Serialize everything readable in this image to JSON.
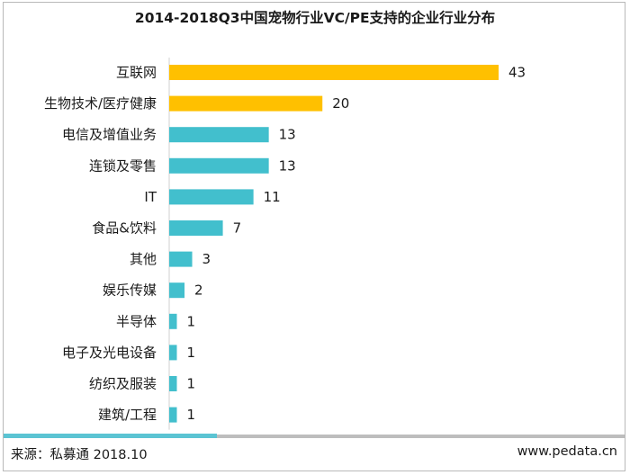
{
  "title": "2014-2018Q3中国宠物行业VC/PE支持的企业行业分布",
  "footer": {
    "source": "来源：私募通  2018.10",
    "website": "www.pedata.cn"
  },
  "colors": {
    "highlight": "#ffc000",
    "normal": "#42bfcd",
    "footer_bar": "#5bc4d3"
  },
  "chart_data": {
    "type": "bar",
    "orientation": "horizontal",
    "categories": [
      "互联网",
      "生物技术/医疗健康",
      "电信及增值业务",
      "连锁及零售",
      "IT",
      "食品&饮料",
      "其他",
      "娱乐传媒",
      "半导体",
      "电子及光电设备",
      "纺织及服装",
      "建筑/工程"
    ],
    "values": [
      43,
      20,
      13,
      13,
      11,
      7,
      3,
      2,
      1,
      1,
      1,
      1
    ],
    "highlighted": [
      "互联网",
      "生物技术/医疗健康"
    ],
    "xlabel": "",
    "ylabel": "",
    "xlim": [
      0,
      43
    ],
    "grid": false,
    "legend": "none"
  }
}
